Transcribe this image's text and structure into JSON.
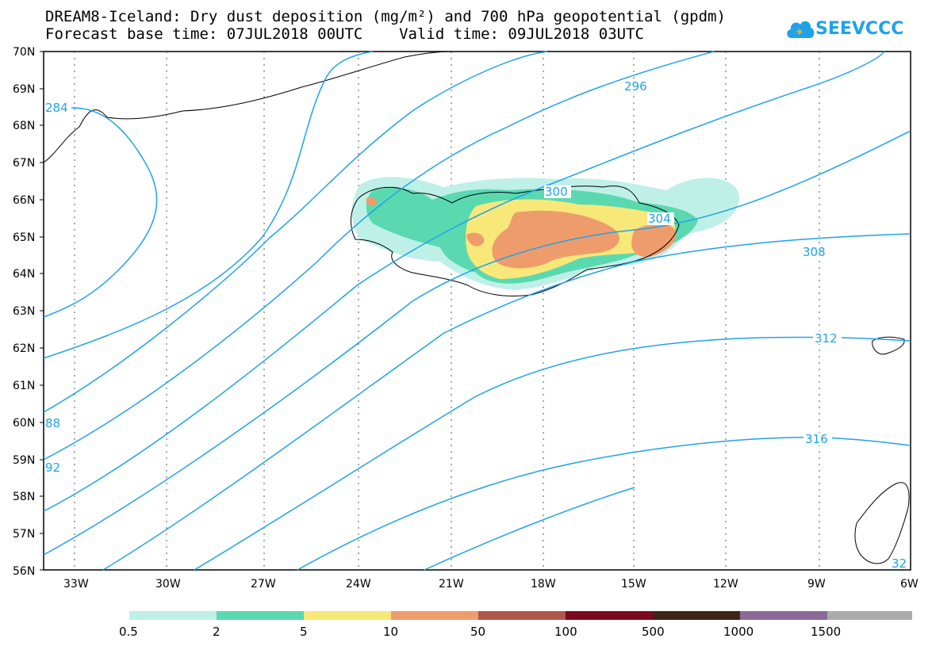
{
  "title": {
    "line1": "DREAM8-Iceland: Dry dust deposition (mg/m²) and 700 hPa geopotential (gpdm)",
    "line2": "Forecast base time: 07JUL2018 00UTC    Valid time: 09JUL2018 03UTC"
  },
  "logo": {
    "text": "SEEVCCC",
    "icon": "cloud-icon",
    "color": "#1fa3e6"
  },
  "map": {
    "lat_labels": [
      "70N",
      "69N",
      "68N",
      "67N",
      "66N",
      "65N",
      "64N",
      "63N",
      "62N",
      "61N",
      "60N",
      "59N",
      "58N",
      "57N",
      "56N"
    ],
    "lon_labels": [
      "33W",
      "30W",
      "27W",
      "24W",
      "21W",
      "18W",
      "15W",
      "12W",
      "9W",
      "6W"
    ],
    "contour_color": "#1fa3e6",
    "contour_labels": [
      "284",
      "88",
      "92",
      "296",
      "300",
      "304",
      "308",
      "312",
      "316",
      "32"
    ]
  },
  "legend": {
    "colors": [
      "#bff0e8",
      "#5ad9b0",
      "#f8e87a",
      "#ef9c6c",
      "#b0564a",
      "#7c0a1e",
      "#3d2318",
      "#8a6a99",
      "#ababab"
    ],
    "labels": [
      "0.5",
      "2",
      "5",
      "10",
      "50",
      "100",
      "500",
      "1000",
      "1500"
    ]
  }
}
